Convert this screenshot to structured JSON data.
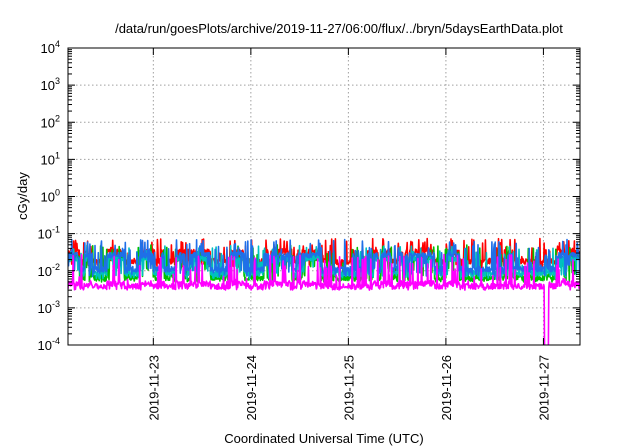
{
  "chart_data": {
    "type": "line",
    "title": "/data/run/goesPlots/archive/2019-11-27/06:00/flux/../bryn/5daysEarthData.plot",
    "xlabel": "Coordinated Universal Time (UTC)",
    "ylabel": "cGy/day",
    "y_scale": "log",
    "ylim": [
      0.0001,
      10000
    ],
    "y_ticks": [
      {
        "value": 0.0001,
        "base": "10",
        "exp": "-4"
      },
      {
        "value": 0.001,
        "base": "10",
        "exp": "-3"
      },
      {
        "value": 0.01,
        "base": "10",
        "exp": "-2"
      },
      {
        "value": 0.1,
        "base": "10",
        "exp": "-1"
      },
      {
        "value": 1,
        "base": "10",
        "exp": "0"
      },
      {
        "value": 10,
        "base": "10",
        "exp": "1"
      },
      {
        "value": 100,
        "base": "10",
        "exp": "2"
      },
      {
        "value": 1000,
        "base": "10",
        "exp": "3"
      },
      {
        "value": 10000,
        "base": "10",
        "exp": "4"
      }
    ],
    "xlim": [
      "2019-11-22T03:00",
      "2019-11-27T09:00"
    ],
    "x_ticks": [
      "2019-11-23",
      "2019-11-24",
      "2019-11-25",
      "2019-11-26",
      "2019-11-27"
    ],
    "grid": true,
    "legend": "none",
    "series": [
      {
        "color": "#ff0000",
        "base": 0.032,
        "low": 0.018,
        "spike_max": 0.075,
        "dip_min": 0.012
      },
      {
        "color": "#00c000",
        "base": 0.022,
        "low": 0.0065,
        "spike_max": 0.05,
        "dip_min": 0.005
      },
      {
        "color": "#00c0c0",
        "base": 0.021,
        "low": 0.0085,
        "spike_max": 0.048,
        "dip_min": 0.006
      },
      {
        "color": "#1f6fe8",
        "base": 0.026,
        "low": 0.011,
        "spike_max": 0.07,
        "dip_min": 0.007
      },
      {
        "color": "#ff00ff",
        "base": 0.0045,
        "low": 0.0038,
        "spike_max": 0.028,
        "dip_min": 0.003,
        "dropout": "2019-11-27T00:45"
      }
    ]
  }
}
